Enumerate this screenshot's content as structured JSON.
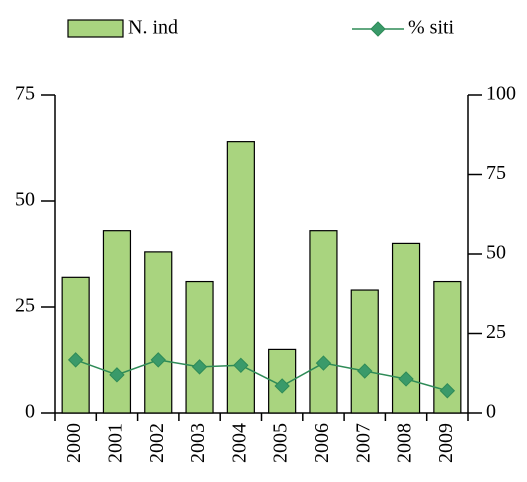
{
  "chart_data": {
    "type": "bar_line",
    "categories": [
      "2000",
      "2001",
      "2002",
      "2003",
      "2004",
      "2005",
      "2006",
      "2007",
      "2008",
      "2009"
    ],
    "series": [
      {
        "name": "N. ind",
        "type": "bar",
        "color": "#a9d47f",
        "values": [
          32,
          43,
          38,
          31,
          64,
          15,
          43,
          29,
          40,
          31
        ]
      },
      {
        "name": "% siti",
        "type": "line",
        "axis": "y2",
        "color": "#2e8b57",
        "values": [
          16.7,
          12,
          16.7,
          14.5,
          15,
          8.5,
          15.7,
          13.2,
          10.7,
          7
        ]
      }
    ],
    "ylim": [
      0,
      75
    ],
    "yticks": [
      0,
      25,
      50,
      75
    ],
    "y2lim": [
      0,
      100
    ],
    "y2ticks": [
      0,
      25,
      50,
      75,
      100
    ],
    "legend": "top"
  }
}
